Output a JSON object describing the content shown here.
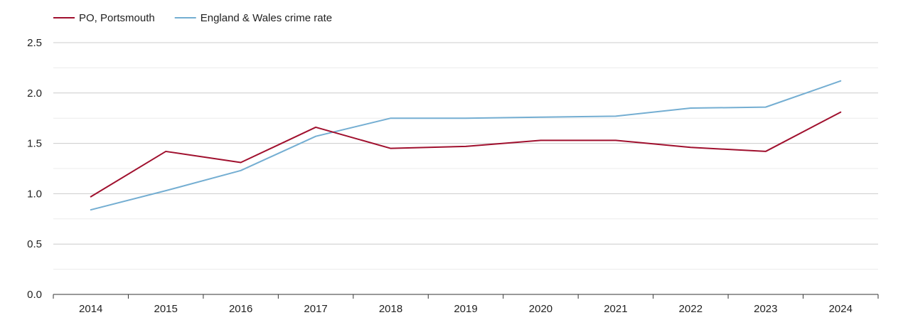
{
  "chart_data": {
    "type": "line",
    "x": [
      "2014",
      "2015",
      "2016",
      "2017",
      "2018",
      "2019",
      "2020",
      "2021",
      "2022",
      "2023",
      "2024"
    ],
    "series": [
      {
        "name": "PO, Portsmouth",
        "color": "#a0102e",
        "values": [
          0.97,
          1.42,
          1.31,
          1.66,
          1.45,
          1.47,
          1.53,
          1.53,
          1.46,
          1.42,
          1.81
        ]
      },
      {
        "name": "England & Wales crime rate",
        "color": "#74aed2",
        "values": [
          0.84,
          1.03,
          1.23,
          1.57,
          1.75,
          1.75,
          1.76,
          1.77,
          1.85,
          1.86,
          2.12
        ]
      }
    ],
    "ylim": [
      0,
      2.5
    ],
    "yticks": [
      "0.0",
      "0.5",
      "1.0",
      "1.5",
      "2.0",
      "2.5"
    ],
    "grid": true,
    "legend_position": "top-left",
    "title": "",
    "xlabel": "",
    "ylabel": ""
  }
}
